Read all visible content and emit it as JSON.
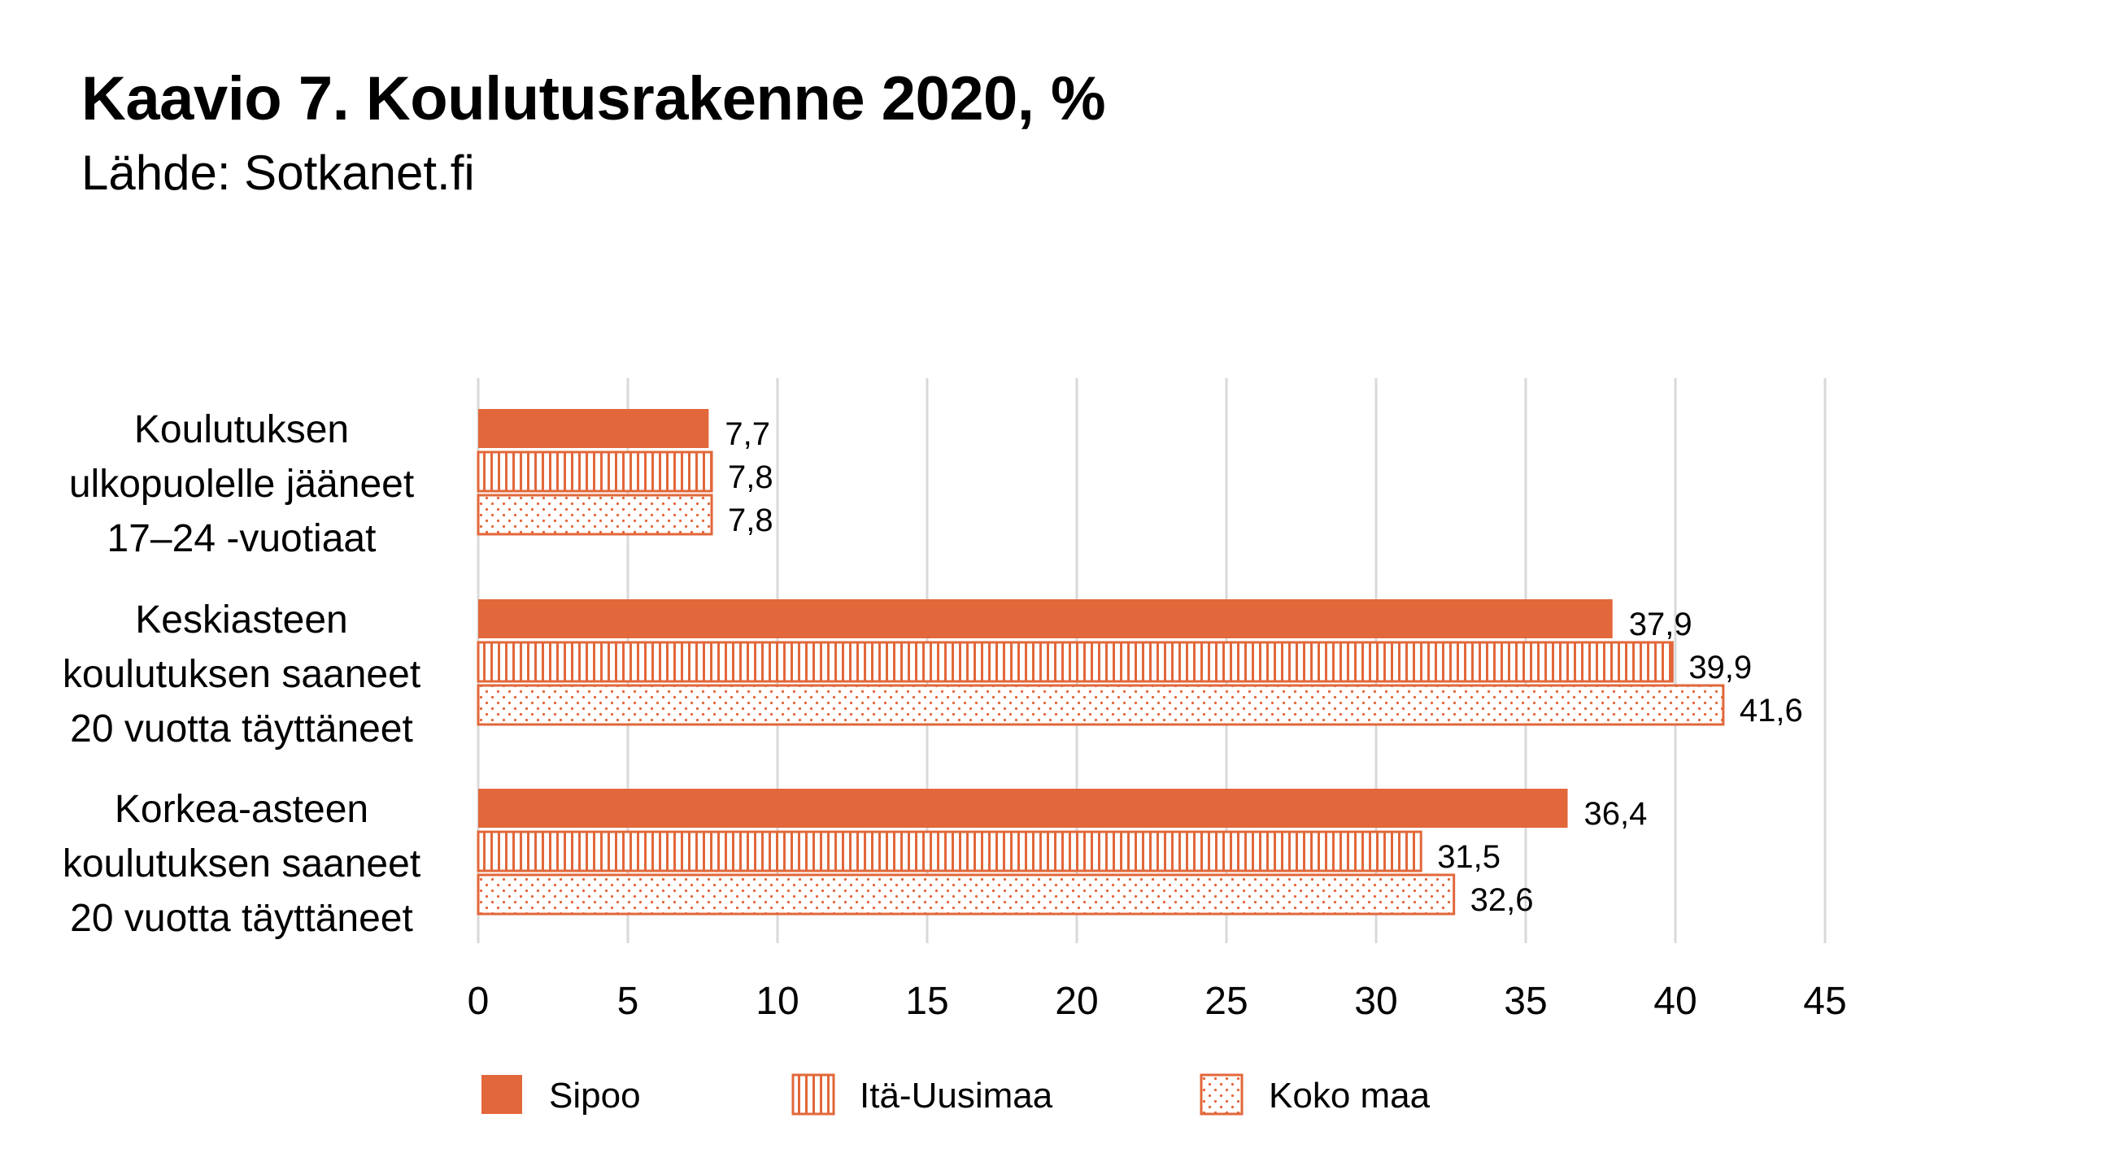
{
  "title": "Kaavio 7. Koulutusrakenne 2020, %",
  "subtitle": "Lähde: Sotkanet.fi",
  "colors": {
    "accent": "#E2673A",
    "grid": "#D9D9D9",
    "text": "#000000"
  },
  "chart_data": {
    "type": "bar",
    "orientation": "horizontal",
    "title": "Kaavio 7. Koulutusrakenne 2020, %",
    "subtitle": "Lähde: Sotkanet.fi",
    "categories": [
      [
        "Koulutuksen",
        "ulkopuolelle jääneet",
        "17–24 -vuotiaat"
      ],
      [
        "Keskiasteen",
        "koulutuksen saaneet",
        "20 vuotta täyttäneet"
      ],
      [
        "Korkea-asteen",
        "koulutuksen saaneet",
        "20 vuotta täyttäneet"
      ]
    ],
    "series": [
      {
        "name": "Sipoo",
        "pattern": "solid",
        "values": [
          7.7,
          37.9,
          36.4
        ],
        "labels": [
          "7,7",
          "37,9",
          "36,4"
        ]
      },
      {
        "name": "Itä-Uusimaa",
        "pattern": "vertical-stripes",
        "values": [
          7.8,
          39.9,
          31.5
        ],
        "labels": [
          "7,8",
          "39,9",
          "31,5"
        ]
      },
      {
        "name": "Koko maa",
        "pattern": "dots",
        "values": [
          7.8,
          41.6,
          32.6
        ],
        "labels": [
          "7,8",
          "41,6",
          "32,6"
        ]
      }
    ],
    "xlim": [
      0,
      45
    ],
    "xticks": [
      0,
      5,
      10,
      15,
      20,
      25,
      30,
      35,
      40,
      45
    ],
    "grid": true,
    "legend_position": "bottom"
  }
}
